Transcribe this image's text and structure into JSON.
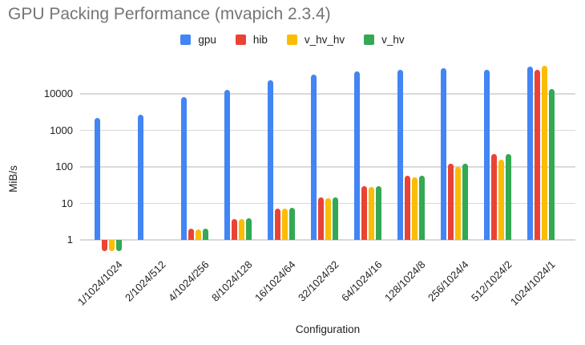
{
  "chart_data": {
    "type": "bar",
    "title": "GPU Packing Performance (mvapich 2.3.4)",
    "xlabel": "Configuration",
    "ylabel": "MiB/s",
    "y_scale": "log",
    "y_ticks": [
      1,
      10,
      100,
      1000,
      10000
    ],
    "ylim": [
      0.4,
      100000
    ],
    "grid": true,
    "legend_position": "top",
    "categories": [
      "1/1024/1024",
      "2/1024/512",
      "4/1024/256",
      "8/1024/128",
      "16/1024/64",
      "32/1024/32",
      "64/1024/16",
      "128/1024/8",
      "256/1024/4",
      "512/1024/2",
      "1024/1024/1"
    ],
    "series": [
      {
        "name": "gpu",
        "color": "#4285F4",
        "values": [
          2200,
          2700,
          8200,
          13000,
          24000,
          34000,
          42000,
          45000,
          50000,
          46000,
          56000
        ]
      },
      {
        "name": "hib",
        "color": "#EA4335",
        "values": [
          0.5,
          null,
          2.0,
          3.7,
          7.3,
          14.5,
          29,
          56,
          120,
          230,
          46000
        ]
      },
      {
        "name": "v_hv_hv",
        "color": "#FBBC04",
        "values": [
          0.5,
          null,
          1.9,
          3.8,
          7.2,
          14.0,
          28,
          51,
          100,
          160,
          58000
        ]
      },
      {
        "name": "v_hv",
        "color": "#34A853",
        "values": [
          0.5,
          null,
          2.0,
          3.9,
          7.6,
          14.5,
          30,
          56,
          125,
          220,
          13500
        ]
      }
    ]
  }
}
